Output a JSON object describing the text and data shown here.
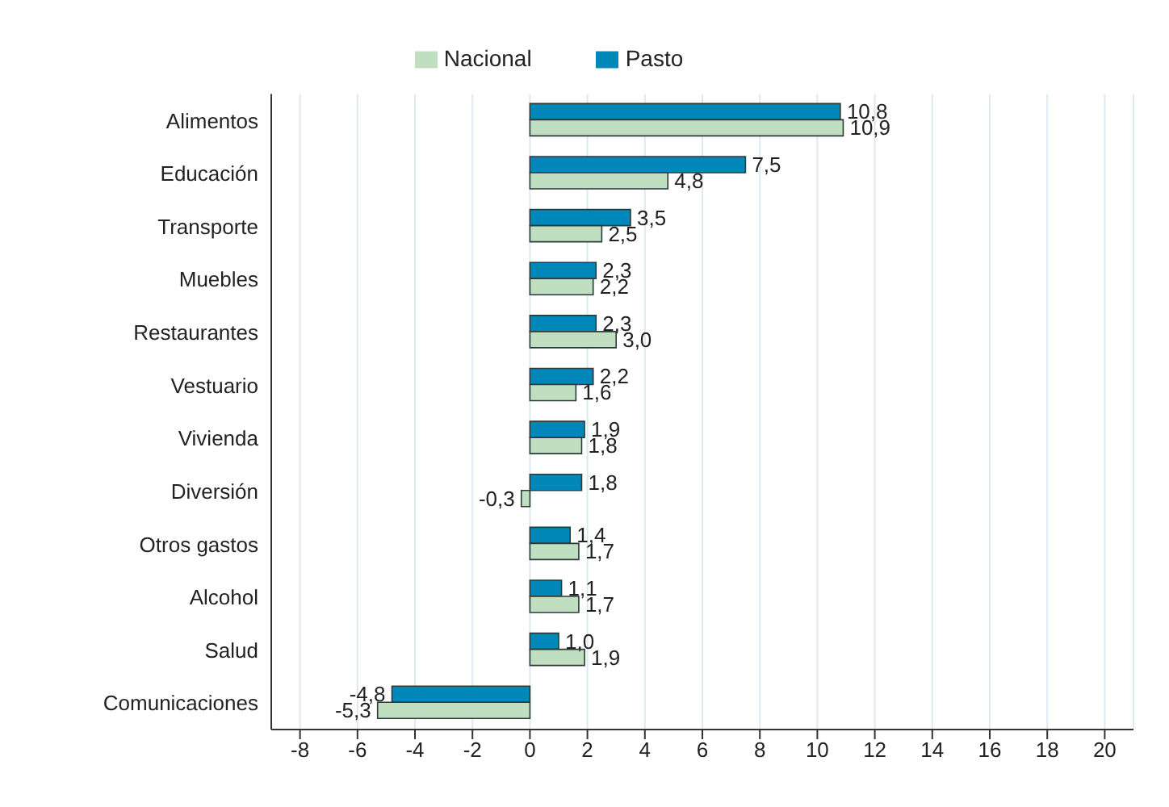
{
  "chart_data": {
    "type": "bar",
    "orientation": "horizontal",
    "categories": [
      "Alimentos",
      "Educación",
      "Transporte",
      "Muebles",
      "Restaurantes",
      "Vestuario",
      "Vivienda",
      "Diversión",
      "Otros gastos",
      "Alcohol",
      "Salud",
      "Comunicaciones"
    ],
    "series": [
      {
        "name": "Pasto",
        "color": "#0088bb",
        "values": [
          10.8,
          7.5,
          3.5,
          2.3,
          2.3,
          2.2,
          1.9,
          1.8,
          1.4,
          1.1,
          1.0,
          -4.8
        ],
        "value_labels": [
          "10,8",
          "7,5",
          "3,5",
          "2,3",
          "2,3",
          "2,2",
          "1,9",
          "1,8",
          "1,4",
          "1,1",
          "1,0",
          "-4,8"
        ]
      },
      {
        "name": "Nacional",
        "color": "#c0dfc0",
        "values": [
          10.9,
          4.8,
          2.5,
          2.2,
          3.0,
          1.6,
          1.8,
          -0.3,
          1.7,
          1.7,
          1.9,
          -5.3
        ],
        "value_labels": [
          "10,9",
          "4,8",
          "2,5",
          "2,2",
          "3,0",
          "1,6",
          "1,8",
          "-0,3",
          "1,7",
          "1,7",
          "1,9",
          "-5,3"
        ]
      }
    ],
    "xlim": [
      -9,
      21
    ],
    "xticks": [
      -8,
      -6,
      -4,
      -2,
      0,
      2,
      4,
      6,
      8,
      10,
      12,
      14,
      16,
      18,
      20
    ],
    "grid": "x",
    "legend": "top"
  }
}
